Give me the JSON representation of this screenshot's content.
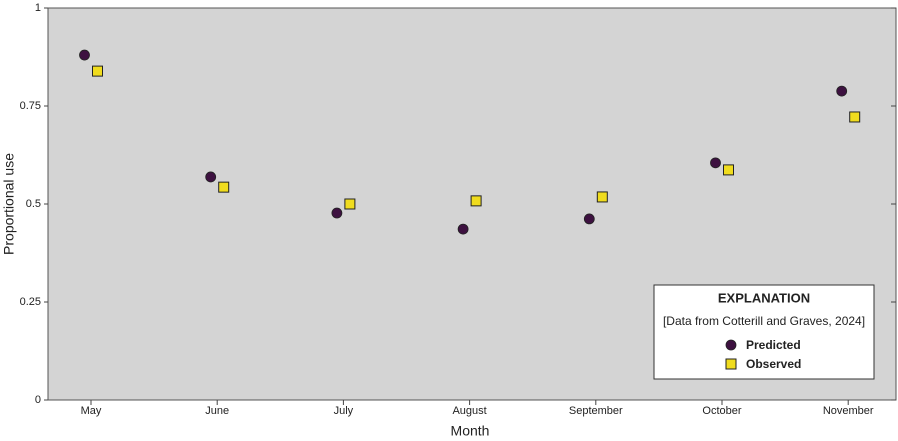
{
  "chart_data": {
    "type": "scatter",
    "xlabel": "Month",
    "ylabel": "Proportional use",
    "categories": [
      "May",
      "June",
      "July",
      "August",
      "September",
      "October",
      "November"
    ],
    "series": [
      {
        "name": "Predicted",
        "color": "#3d1140",
        "marker": "circle",
        "values": [
          0.88,
          0.569,
          0.477,
          0.436,
          0.462,
          0.605,
          0.788
        ]
      },
      {
        "name": "Observed",
        "color": "#f0dc1e",
        "marker": "square",
        "values": [
          0.839,
          0.543,
          0.5,
          0.508,
          0.518,
          0.587,
          0.722
        ]
      }
    ],
    "ylim": [
      0,
      1
    ],
    "yticks": [
      0,
      0.25,
      0.5,
      0.75,
      1
    ],
    "legend": {
      "title": "EXPLANATION",
      "subtitle": "[Data from Cotterill and Graves, 2024]",
      "position": "lower right"
    }
  }
}
